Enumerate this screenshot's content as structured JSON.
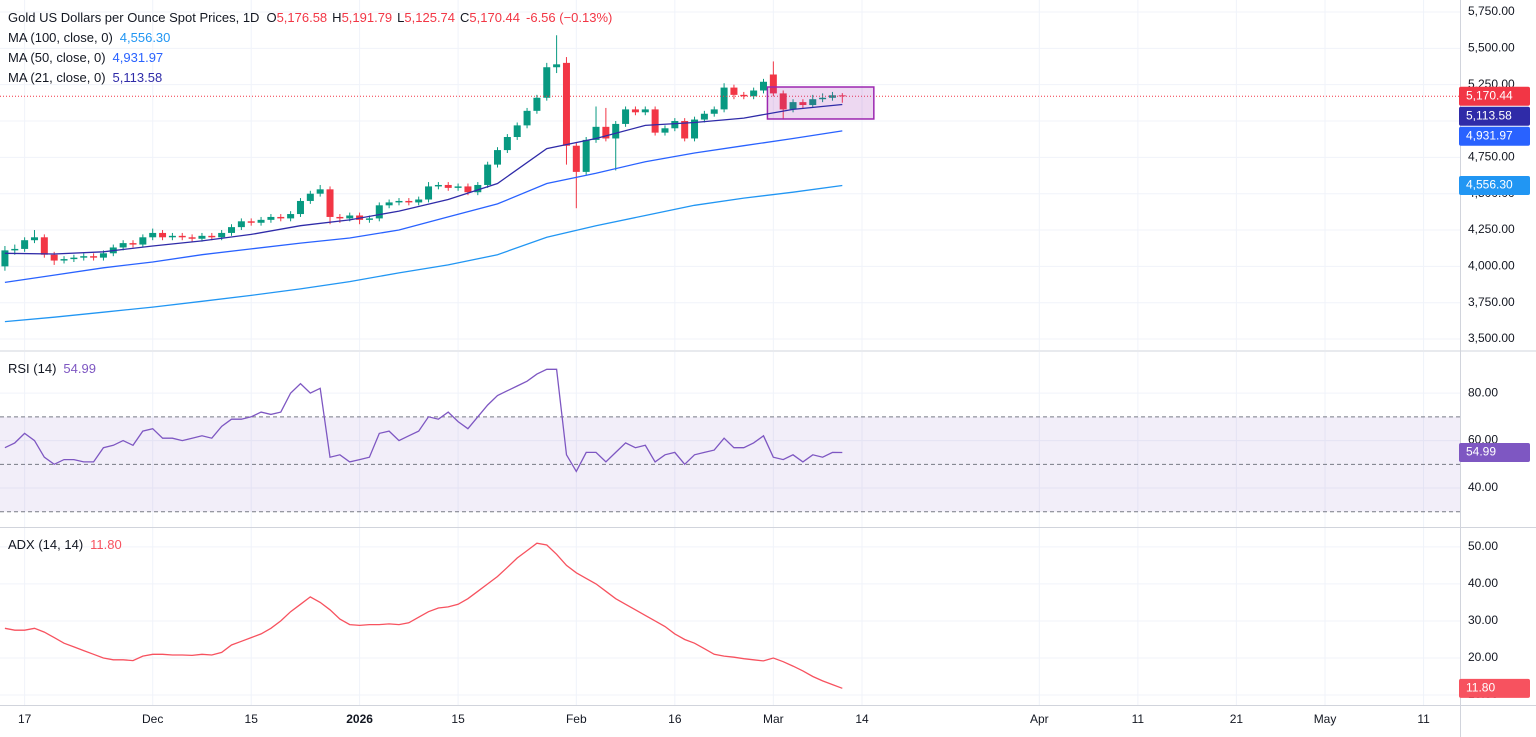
{
  "chart_data": [
    {
      "type": "candlestick",
      "title": "Gold US Dollars per Ounce Spot Prices, 1D",
      "ohlc_labels": [
        {
          "key": "O",
          "label": "5,176.58"
        },
        {
          "key": "H",
          "label": "5,191.79"
        },
        {
          "key": "L",
          "label": "5,125.74"
        },
        {
          "key": "C",
          "label": "5,170.44"
        }
      ],
      "change_label": "-6.56 (−0.13%)",
      "up_color": "#089981",
      "down_color": "#f23645",
      "x": [
        0,
        1,
        2,
        3,
        4,
        5,
        6,
        7,
        8,
        9,
        10,
        11,
        12,
        13,
        14,
        15,
        16,
        17,
        18,
        19,
        20,
        21,
        22,
        23,
        24,
        25,
        26,
        27,
        28,
        29,
        30,
        31,
        32,
        33,
        34,
        35,
        36,
        37,
        38,
        39,
        40,
        41,
        42,
        43,
        44,
        45,
        46,
        47,
        48,
        49,
        50,
        51,
        52,
        53,
        54,
        55,
        56,
        57,
        58,
        59,
        60,
        61,
        62,
        63,
        64,
        65,
        66,
        67,
        68,
        69,
        70,
        71,
        72,
        73,
        74,
        75,
        76,
        77,
        78,
        79,
        80,
        81,
        82,
        83,
        84,
        85
      ],
      "open": [
        4000,
        4110,
        4120,
        4180,
        4200,
        4080,
        4040,
        4050,
        4060,
        4070,
        4060,
        4090,
        4130,
        4160,
        4150,
        4200,
        4230,
        4200,
        4210,
        4200,
        4190,
        4210,
        4200,
        4230,
        4270,
        4310,
        4300,
        4320,
        4340,
        4330,
        4360,
        4450,
        4500,
        4530,
        4340,
        4330,
        4350,
        4320,
        4330,
        4420,
        4440,
        4450,
        4440,
        4460,
        4550,
        4560,
        4540,
        4550,
        4510,
        4560,
        4700,
        4800,
        4890,
        4970,
        5070,
        5160,
        5370,
        5400,
        4830,
        4650,
        4870,
        4960,
        4880,
        4980,
        5080,
        5060,
        5080,
        4920,
        4950,
        5000,
        4880,
        5010,
        5050,
        5080,
        5230,
        5180,
        5170,
        5210,
        5320,
        5190,
        5080,
        5130,
        5110,
        5150,
        5160,
        5176.58
      ],
      "high": [
        4140,
        4150,
        4200,
        4250,
        4220,
        4100,
        4070,
        4080,
        4090,
        4090,
        4110,
        4150,
        4180,
        4180,
        4220,
        4260,
        4250,
        4230,
        4230,
        4220,
        4230,
        4230,
        4250,
        4290,
        4330,
        4330,
        4340,
        4360,
        4360,
        4380,
        4470,
        4520,
        4560,
        4550,
        4360,
        4370,
        4370,
        4350,
        4440,
        4460,
        4470,
        4470,
        4480,
        4580,
        4580,
        4580,
        4570,
        4570,
        4580,
        4720,
        4820,
        4910,
        4990,
        5090,
        5180,
        5400,
        5590,
        5440,
        4850,
        4890,
        5100,
        5090,
        5000,
        5100,
        5100,
        5100,
        5100,
        4970,
        5020,
        5020,
        5030,
        5070,
        5100,
        5260,
        5250,
        5200,
        5230,
        5290,
        5410,
        5210,
        5150,
        5150,
        5180,
        5190,
        5200,
        5191.79
      ],
      "low": [
        3970,
        4080,
        4100,
        4160,
        4060,
        4010,
        4020,
        4030,
        4040,
        4040,
        4040,
        4070,
        4110,
        4130,
        4130,
        4180,
        4180,
        4180,
        4180,
        4170,
        4170,
        4180,
        4180,
        4210,
        4250,
        4280,
        4280,
        4300,
        4310,
        4310,
        4340,
        4430,
        4480,
        4290,
        4300,
        4310,
        4290,
        4300,
        4310,
        4400,
        4420,
        4420,
        4420,
        4440,
        4530,
        4520,
        4520,
        4490,
        4490,
        4540,
        4680,
        4780,
        4870,
        4950,
        5050,
        5140,
        5330,
        4700,
        4400,
        4630,
        4850,
        4860,
        4660,
        4960,
        5040,
        5040,
        4900,
        4900,
        4930,
        4860,
        4860,
        4990,
        5030,
        5060,
        5150,
        5150,
        5150,
        5190,
        5170,
        5010,
        5060,
        5090,
        5090,
        5130,
        5140,
        5125.74
      ],
      "close": [
        4110,
        4120,
        4180,
        4200,
        4080,
        4040,
        4050,
        4060,
        4070,
        4060,
        4090,
        4130,
        4160,
        4150,
        4200,
        4230,
        4200,
        4210,
        4200,
        4190,
        4210,
        4200,
        4230,
        4270,
        4310,
        4300,
        4320,
        4340,
        4330,
        4360,
        4450,
        4500,
        4530,
        4340,
        4330,
        4350,
        4320,
        4330,
        4420,
        4440,
        4450,
        4440,
        4460,
        4550,
        4560,
        4540,
        4550,
        4510,
        4560,
        4700,
        4800,
        4890,
        4970,
        5070,
        5160,
        5370,
        5390,
        4830,
        4650,
        4870,
        4960,
        4880,
        4980,
        5080,
        5060,
        5080,
        4920,
        4950,
        5000,
        4880,
        5010,
        5050,
        5080,
        5230,
        5180,
        5170,
        5210,
        5270,
        5190,
        5080,
        5130,
        5110,
        5150,
        5160,
        5177,
        5170.44
      ],
      "last_label": "5,170.44",
      "series": [
        {
          "name": "MA (100, close, 0)",
          "color": "#2196f3",
          "last_label": "4,556.30",
          "x": [
            0,
            5,
            10,
            15,
            20,
            25,
            30,
            35,
            40,
            45,
            50,
            55,
            60,
            65,
            70,
            75,
            80,
            85
          ],
          "values": [
            3620,
            3650,
            3685,
            3720,
            3760,
            3800,
            3845,
            3895,
            3955,
            4010,
            4080,
            4200,
            4280,
            4350,
            4420,
            4470,
            4510,
            4556.3
          ]
        },
        {
          "name": "MA (50, close, 0)",
          "color": "#2962ff",
          "last_label": "4,931.97",
          "x": [
            0,
            5,
            10,
            15,
            20,
            25,
            30,
            35,
            40,
            45,
            50,
            55,
            60,
            65,
            70,
            75,
            80,
            85
          ],
          "values": [
            3890,
            3940,
            3990,
            4030,
            4080,
            4120,
            4160,
            4195,
            4250,
            4340,
            4430,
            4570,
            4640,
            4720,
            4780,
            4830,
            4880,
            4931.97
          ]
        },
        {
          "name": "MA (21, close, 0)",
          "color": "#2f2ba8",
          "last_label": "5,113.58",
          "x": [
            0,
            5,
            10,
            15,
            20,
            25,
            30,
            35,
            40,
            45,
            50,
            55,
            60,
            65,
            70,
            75,
            80,
            85
          ],
          "values": [
            4090,
            4085,
            4100,
            4140,
            4175,
            4220,
            4280,
            4320,
            4380,
            4460,
            4570,
            4810,
            4880,
            4970,
            4990,
            5020,
            5080,
            5113.58
          ]
        }
      ],
      "box": {
        "x": [
          77.4,
          88.2
        ],
        "y": [
          5014,
          5234
        ],
        "color": "#9c27b0"
      },
      "ylim": [
        3424.6,
        5832.6
      ],
      "yticks": [
        {
          "value": 3500,
          "label": "3,500.00"
        },
        {
          "value": 3750,
          "label": "3,750.00"
        },
        {
          "value": 4000,
          "label": "4,000.00"
        },
        {
          "value": 4250,
          "label": "4,250.00"
        },
        {
          "value": 4500,
          "label": "4,500.00"
        },
        {
          "value": 4750,
          "label": "4,750.00"
        },
        {
          "value": 5000,
          "label": "5,000.00"
        },
        {
          "value": 5250,
          "label": "5,250.00"
        },
        {
          "value": 5500,
          "label": "5,500.00"
        },
        {
          "value": 5750,
          "label": "5,750.00"
        }
      ],
      "grid": true
    },
    {
      "type": "line",
      "series": [
        {
          "name": "RSI (14)",
          "color": "#7e57c2",
          "x": [
            0,
            1,
            2,
            3,
            4,
            5,
            6,
            7,
            8,
            9,
            10,
            11,
            12,
            13,
            14,
            15,
            16,
            17,
            18,
            19,
            20,
            21,
            22,
            23,
            24,
            25,
            26,
            27,
            28,
            29,
            30,
            31,
            32,
            33,
            34,
            35,
            36,
            37,
            38,
            39,
            40,
            41,
            42,
            43,
            44,
            45,
            46,
            47,
            48,
            49,
            50,
            51,
            52,
            53,
            54,
            55,
            56,
            57,
            58,
            59,
            60,
            61,
            62,
            63,
            64,
            65,
            66,
            67,
            68,
            69,
            70,
            71,
            72,
            73,
            74,
            75,
            76,
            77,
            78,
            79,
            80,
            81,
            82,
            83,
            84,
            85
          ],
          "values": [
            57,
            59,
            63,
            60,
            53,
            50,
            52,
            52,
            51,
            51,
            57,
            58,
            60,
            58,
            64,
            65,
            61,
            61,
            60,
            61,
            62,
            61,
            66,
            69,
            69,
            70,
            72,
            71,
            72,
            80,
            84,
            80,
            82,
            53,
            54,
            51,
            52,
            53,
            63,
            64,
            60,
            62,
            64,
            70,
            69,
            72,
            68,
            65,
            70,
            75,
            79,
            81,
            83,
            85,
            88,
            90,
            90,
            54,
            47,
            55,
            55,
            51,
            55,
            59,
            57,
            58,
            51,
            54,
            55,
            50,
            54,
            55,
            56,
            61,
            57,
            57,
            59,
            62,
            53,
            52,
            54,
            51,
            54,
            53,
            55,
            54.99
          ]
        }
      ],
      "levels": [
        30,
        50,
        70
      ],
      "band_color": "#7e57c2",
      "ylim": [
        23.6,
        97.3
      ],
      "yticks": [
        {
          "value": 40,
          "label": "40.00"
        },
        {
          "value": 60,
          "label": "60.00"
        },
        {
          "value": 80,
          "label": "80.00"
        }
      ],
      "grid": true
    },
    {
      "type": "line",
      "series": [
        {
          "name": "ADX (14, 14)",
          "color": "#f7525f",
          "last_label": "11.80",
          "x": [
            0,
            1,
            2,
            3,
            4,
            5,
            6,
            7,
            8,
            9,
            10,
            11,
            12,
            13,
            14,
            15,
            16,
            17,
            18,
            19,
            20,
            21,
            22,
            23,
            24,
            25,
            26,
            27,
            28,
            29,
            30,
            31,
            32,
            33,
            34,
            35,
            36,
            37,
            38,
            39,
            40,
            41,
            42,
            43,
            44,
            45,
            46,
            47,
            48,
            49,
            50,
            51,
            52,
            53,
            54,
            55,
            56,
            57,
            58,
            59,
            60,
            61,
            62,
            63,
            64,
            65,
            66,
            67,
            68,
            69,
            70,
            71,
            72,
            73,
            74,
            75,
            76,
            77,
            78,
            79,
            80,
            81,
            82,
            83,
            84,
            85
          ],
          "values": [
            28,
            27.5,
            27.5,
            28,
            27,
            25.5,
            24,
            23,
            22,
            21,
            20,
            19.5,
            19.5,
            19.3,
            20.5,
            21,
            21,
            20.8,
            20.8,
            20.7,
            21,
            20.8,
            21.5,
            23.5,
            24.5,
            25.5,
            26.5,
            28,
            30,
            32.5,
            34.5,
            36.5,
            35,
            33,
            30.5,
            29,
            28.8,
            29,
            29,
            29.2,
            29,
            29.5,
            31,
            32.5,
            33.5,
            33.8,
            34.5,
            36,
            38,
            40,
            42,
            44.5,
            47,
            49,
            51,
            50.5,
            48,
            45,
            43,
            41.5,
            40,
            38,
            36,
            34.5,
            33,
            31.5,
            30,
            28.5,
            26.5,
            25,
            24,
            22.5,
            21,
            20.5,
            20.2,
            19.8,
            19.5,
            19.2,
            20,
            19,
            17.8,
            16.5,
            15,
            13.8,
            12.8,
            11.8
          ]
        }
      ],
      "ylim": [
        7.3,
        55.1
      ],
      "yticks": [
        {
          "value": 10,
          "label": "10.00"
        },
        {
          "value": 20,
          "label": "20.00"
        },
        {
          "value": 30,
          "label": "30.00"
        },
        {
          "value": 40,
          "label": "40.00"
        },
        {
          "value": 50,
          "label": "50.00"
        }
      ],
      "grid": true,
      "xlim": [
        -0.5,
        147.7
      ],
      "xticks": [
        {
          "value": 2,
          "label": "17"
        },
        {
          "value": 15,
          "label": "Dec"
        },
        {
          "value": 25,
          "label": "15"
        },
        {
          "value": 36,
          "label": "2026",
          "bold": true
        },
        {
          "value": 46,
          "label": "15"
        },
        {
          "value": 58,
          "label": "Feb"
        },
        {
          "value": 68,
          "label": "16"
        },
        {
          "value": 78,
          "label": "Mar"
        },
        {
          "value": 87,
          "label": "14"
        },
        {
          "value": 105,
          "label": "Apr"
        },
        {
          "value": 115,
          "label": "11"
        },
        {
          "value": 125,
          "label": "21"
        },
        {
          "value": 134,
          "label": "May"
        },
        {
          "value": 144,
          "label": "11"
        }
      ]
    }
  ]
}
